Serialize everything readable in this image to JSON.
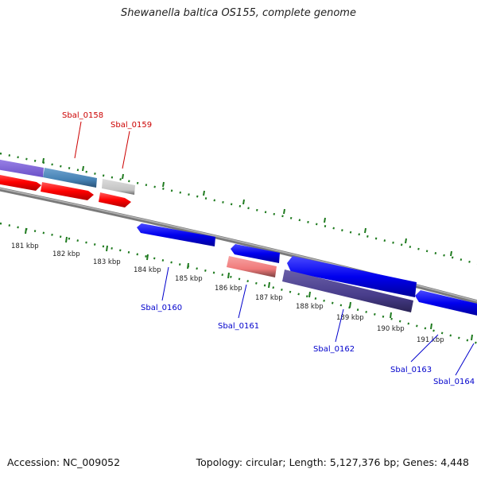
{
  "title": "Shewanella baltica OS155, complete genome",
  "accession": "Accession: NC_009052",
  "summary": "Topology: circular; Length: 5,127,376 bp; Genes: 4,448",
  "colors": {
    "backbone": "#8a8a8a",
    "ticks": "#1e7a1e",
    "label_forward": "#cc0000",
    "label_reverse": "#0000cc",
    "gene_red": "#ff0000",
    "gene_blue": "#0000ee",
    "gene_pink": "#f08080",
    "gene_grey": "#c8c8c8",
    "gene_purple": "#7a5fd6",
    "gene_steel": "#4682b4",
    "gene_slate": "#483d8b"
  },
  "tick_labels": [
    "181 kbp",
    "182 kbp",
    "183 kbp",
    "184 kbp",
    "185 kbp",
    "186 kbp",
    "187 kbp",
    "188 kbp",
    "189 kbp",
    "190 kbp",
    "191 kbp"
  ],
  "gene_labels": [
    {
      "text": "Sbal_0158",
      "strand": "forward"
    },
    {
      "text": "Sbal_0159",
      "strand": "forward"
    },
    {
      "text": "Sbal_0160",
      "strand": "reverse"
    },
    {
      "text": "Sbal_0161",
      "strand": "reverse"
    },
    {
      "text": "Sbal_0162",
      "strand": "reverse"
    },
    {
      "text": "Sbal_0163",
      "strand": "reverse"
    },
    {
      "text": "Sbal_0164",
      "strand": "reverse"
    }
  ]
}
